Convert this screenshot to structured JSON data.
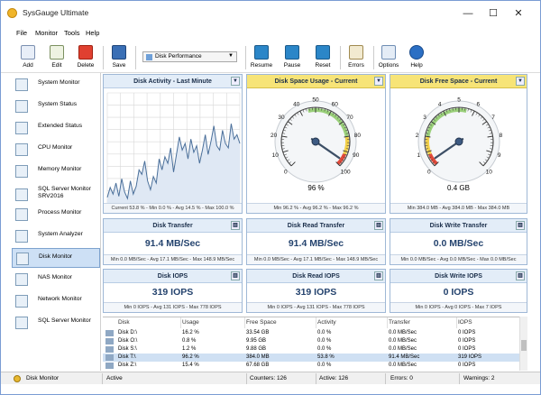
{
  "window": {
    "title": "SysGauge Ultimate"
  },
  "menu": [
    "File",
    "Monitor",
    "Tools",
    "Help"
  ],
  "toolbar": {
    "add": "Add",
    "edit": "Edit",
    "delete": "Delete",
    "save": "Save",
    "profile": "Disk Performance",
    "resume": "Resume",
    "pause": "Pause",
    "reset": "Reset",
    "errors": "Errors",
    "options": "Options",
    "help": "Help"
  },
  "sidebar": {
    "items": [
      {
        "label": "System Monitor",
        "icon": "monitor-icon"
      },
      {
        "label": "System Status",
        "icon": "status-icon"
      },
      {
        "label": "Extended Status",
        "icon": "extended-status-icon"
      },
      {
        "label": "CPU Monitor",
        "icon": "cpu-icon"
      },
      {
        "label": "Memory Monitor",
        "icon": "memory-icon"
      },
      {
        "label": "SQL Server Monitor",
        "label2": "SRV2016",
        "icon": "sql-server-icon"
      },
      {
        "label": "Process Monitor",
        "icon": "process-icon"
      },
      {
        "label": "System Analyzer",
        "icon": "analyzer-icon"
      },
      {
        "label": "Disk Monitor",
        "icon": "disk-icon"
      },
      {
        "label": "NAS Monitor",
        "icon": "nas-icon"
      },
      {
        "label": "Network Monitor",
        "icon": "network-icon"
      },
      {
        "label": "SQL Server Monitor",
        "icon": "sql-server-icon"
      }
    ]
  },
  "panels": {
    "activity": {
      "title": "Disk Activity - Last Minute",
      "footer": "Current 53.8 % - Min 0.0 % - Avg 14.5 % - Max 100.0 %"
    },
    "space_usage": {
      "title": "Disk Space Usage - Current",
      "value": "96 %",
      "footer": "Min 96.2 % - Avg 96.2 % - Max 96.2 %",
      "gauge_value": 96.2,
      "ticks": [
        "0",
        "10",
        "20",
        "30",
        "40",
        "50",
        "60",
        "70",
        "80",
        "90",
        "100"
      ]
    },
    "free_space": {
      "title": "Disk Free Space - Current",
      "value": "0.4 GB",
      "footer": "Min 384.0 MB - Avg 384.0 MB - Max 384.0 MB",
      "gauge_value": 0.38,
      "ticks": [
        "0",
        "1",
        "2",
        "3",
        "4",
        "5",
        "6",
        "7",
        "8",
        "9",
        "10"
      ]
    },
    "transfer": {
      "title": "Disk Transfer",
      "value": "91.4 MB/Sec",
      "footer": "Min 0.0 MB/Sec - Avg 17.1 MB/Sec - Max 148.9 MB/Sec"
    },
    "read_transfer": {
      "title": "Disk Read Transfer",
      "value": "91.4 MB/Sec",
      "footer": "Min 0.0 MB/Sec - Avg 17.1 MB/Sec - Max 148.9 MB/Sec"
    },
    "write_transfer": {
      "title": "Disk Write Transfer",
      "value": "0.0 MB/Sec",
      "footer": "Min 0.0 MB/Sec - Avg 0.0 MB/Sec - Max 0.0 MB/Sec"
    },
    "iops": {
      "title": "Disk IOPS",
      "value": "319 IOPS",
      "footer": "Min 0 IOPS - Avg 131 IOPS - Max 778 IOPS"
    },
    "read_iops": {
      "title": "Disk Read IOPS",
      "value": "319 IOPS",
      "footer": "Min 0 IOPS - Avg 131 IOPS - Max 778 IOPS"
    },
    "write_iops": {
      "title": "Disk Write IOPS",
      "value": "0 IOPS",
      "footer": "Min 0 IOPS - Avg 0 IOPS - Max 7 IOPS"
    }
  },
  "chart_data": {
    "type": "area",
    "y_percent": [
      5,
      14,
      8,
      18,
      6,
      22,
      10,
      4,
      20,
      8,
      15,
      30,
      26,
      38,
      20,
      12,
      24,
      18,
      40,
      30,
      42,
      36,
      50,
      28,
      44,
      60,
      48,
      54,
      40,
      58,
      46,
      52,
      36,
      48,
      62,
      44,
      56,
      70,
      52,
      48,
      66,
      54,
      50,
      72,
      58,
      62,
      54
    ]
  },
  "table": {
    "headers": [
      "Disk",
      "Usage",
      "Free Space",
      "Activity",
      "Transfer",
      "IOPS"
    ],
    "rows": [
      {
        "disk": "Disk D:\\",
        "usage": "16.2 %",
        "free": "33.54 GB",
        "activity": "0.0 %",
        "transfer": "0.0 MB/Sec",
        "iops": "0 IOPS"
      },
      {
        "disk": "Disk O:\\",
        "usage": "0.8 %",
        "free": "9.95 GB",
        "activity": "0.0 %",
        "transfer": "0.0 MB/Sec",
        "iops": "0 IOPS"
      },
      {
        "disk": "Disk S:\\",
        "usage": "1.2 %",
        "free": "9.88 GB",
        "activity": "0.0 %",
        "transfer": "0.0 MB/Sec",
        "iops": "0 IOPS"
      },
      {
        "disk": "Disk T:\\",
        "usage": "96.2 %",
        "free": "384.0 MB",
        "activity": "53.8 %",
        "transfer": "91.4 MB/Sec",
        "iops": "319 IOPS"
      },
      {
        "disk": "Disk Z:\\",
        "usage": "15.4 %",
        "free": "67.68 GB",
        "activity": "0.0 %",
        "transfer": "0.0 MB/Sec",
        "iops": "0 IOPS"
      }
    ]
  },
  "status": {
    "monitor": "Disk Monitor",
    "state": "Active",
    "counters": "Counters: 126",
    "active": "Active: 126",
    "errors": "Errors: 0",
    "warnings": "Warnings: 2"
  },
  "colors": {
    "accent": "#24436e",
    "header_blue": "#e3edf8",
    "header_yellow": "#f7e477",
    "chart_fill": "#dfe8f4",
    "chart_line": "#4a6f9a",
    "selected": "#cde0f5"
  }
}
